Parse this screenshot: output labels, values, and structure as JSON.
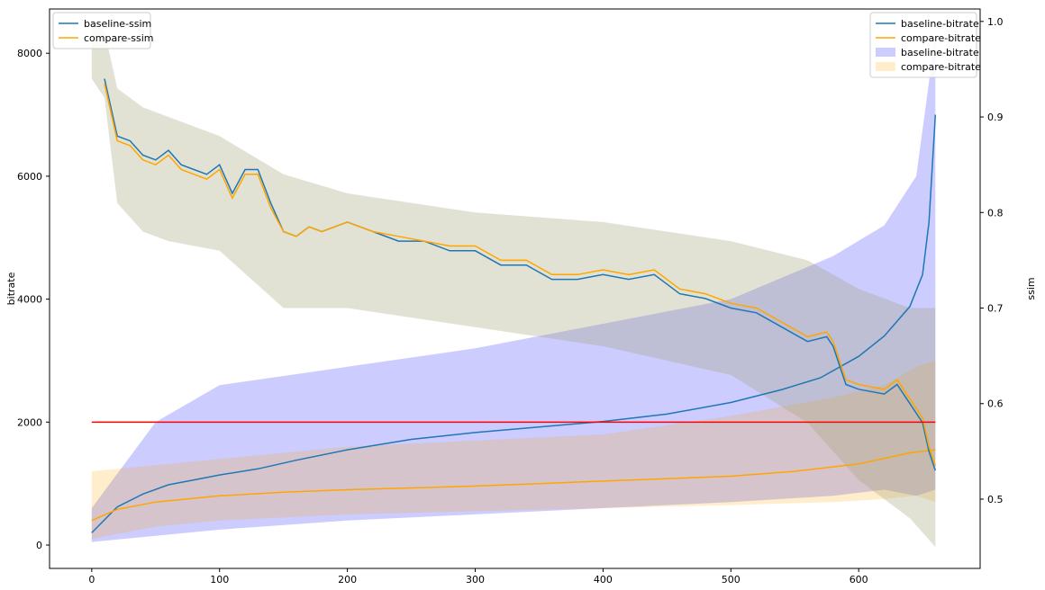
{
  "chart_data": {
    "type": "line",
    "title": "",
    "xlabel": "",
    "ylabel_left": "bitrate",
    "ylabel_right": "ssim",
    "xlim": [
      -33,
      695
    ],
    "ylim_left": [
      -380,
      8720
    ],
    "ylim_right": [
      0.4275,
      1.013
    ],
    "x_ticks": [
      0,
      100,
      200,
      300,
      400,
      500,
      600
    ],
    "y_ticks_left": [
      0,
      2000,
      4000,
      6000,
      8000
    ],
    "y_ticks_right": [
      0.5,
      0.6,
      0.7,
      0.8,
      0.9,
      1.0
    ],
    "threshold": {
      "y": 2000,
      "x_start": 0,
      "x_end": 660,
      "color": "#ff0000"
    },
    "bitrate_series": [
      {
        "name": "baseline-bitrate",
        "color": "#1f77b4",
        "x": [
          0,
          20,
          40,
          60,
          80,
          100,
          130,
          160,
          200,
          250,
          300,
          350,
          400,
          450,
          500,
          540,
          570,
          600,
          620,
          640,
          650,
          655,
          660
        ],
        "values": [
          200,
          620,
          830,
          980,
          1060,
          1140,
          1240,
          1380,
          1550,
          1720,
          1830,
          1920,
          2010,
          2130,
          2320,
          2530,
          2720,
          3070,
          3400,
          3880,
          4400,
          5250,
          7000
        ]
      },
      {
        "name": "compare-bitrate",
        "color": "#ffa500",
        "x": [
          0,
          20,
          50,
          100,
          150,
          200,
          250,
          300,
          350,
          400,
          450,
          500,
          550,
          600,
          640,
          660
        ],
        "values": [
          400,
          580,
          700,
          800,
          860,
          900,
          930,
          960,
          1000,
          1040,
          1080,
          1120,
          1200,
          1320,
          1500,
          1550
        ]
      }
    ],
    "bitrate_bands": [
      {
        "name": "baseline-bitrate",
        "color": "#0000ff",
        "opacity": 0.2,
        "x": [
          0,
          50,
          100,
          200,
          300,
          400,
          500,
          580,
          620,
          645,
          660
        ],
        "upper": [
          600,
          2000,
          2600,
          2900,
          3200,
          3600,
          4000,
          4700,
          5200,
          6000,
          8300
        ],
        "lower": [
          50,
          150,
          250,
          400,
          500,
          600,
          700,
          800,
          900,
          800,
          900
        ]
      },
      {
        "name": "compare-bitrate",
        "color": "#ffa500",
        "opacity": 0.2,
        "x": [
          0,
          50,
          100,
          200,
          300,
          400,
          500,
          580,
          620,
          645,
          660
        ],
        "upper": [
          1200,
          1300,
          1400,
          1600,
          1700,
          1800,
          2100,
          2400,
          2600,
          2900,
          3000
        ],
        "lower": [
          100,
          300,
          400,
          500,
          550,
          600,
          650,
          700,
          750,
          800,
          700
        ]
      }
    ],
    "ssim_series": [
      {
        "name": "baseline-ssim",
        "color": "#1f77b4",
        "x": [
          10,
          15,
          20,
          30,
          40,
          50,
          60,
          70,
          80,
          90,
          100,
          110,
          120,
          130,
          140,
          150,
          160,
          170,
          180,
          190,
          200,
          220,
          240,
          260,
          280,
          300,
          320,
          340,
          360,
          380,
          400,
          420,
          440,
          460,
          480,
          500,
          520,
          540,
          560,
          575,
          580,
          590,
          600,
          620,
          630,
          640,
          650,
          655,
          660
        ],
        "values": [
          0.94,
          0.91,
          0.88,
          0.875,
          0.86,
          0.855,
          0.865,
          0.85,
          0.845,
          0.84,
          0.85,
          0.82,
          0.845,
          0.845,
          0.81,
          0.78,
          0.775,
          0.785,
          0.78,
          0.785,
          0.79,
          0.78,
          0.77,
          0.77,
          0.76,
          0.76,
          0.745,
          0.745,
          0.73,
          0.73,
          0.735,
          0.73,
          0.735,
          0.715,
          0.71,
          0.7,
          0.695,
          0.68,
          0.665,
          0.67,
          0.66,
          0.62,
          0.615,
          0.61,
          0.62,
          0.6,
          0.58,
          0.55,
          0.53
        ]
      },
      {
        "name": "compare-ssim",
        "color": "#ffa500",
        "x": [
          10,
          15,
          20,
          30,
          40,
          50,
          60,
          70,
          80,
          90,
          100,
          110,
          120,
          130,
          140,
          150,
          160,
          170,
          180,
          190,
          200,
          220,
          240,
          260,
          280,
          300,
          320,
          340,
          360,
          380,
          400,
          420,
          440,
          460,
          480,
          500,
          520,
          540,
          560,
          575,
          580,
          590,
          600,
          620,
          630,
          640,
          650,
          655,
          660
        ],
        "values": [
          0.935,
          0.905,
          0.875,
          0.87,
          0.855,
          0.85,
          0.86,
          0.845,
          0.84,
          0.835,
          0.845,
          0.815,
          0.84,
          0.84,
          0.805,
          0.78,
          0.775,
          0.785,
          0.78,
          0.785,
          0.79,
          0.78,
          0.775,
          0.77,
          0.765,
          0.765,
          0.75,
          0.75,
          0.735,
          0.735,
          0.74,
          0.735,
          0.74,
          0.72,
          0.715,
          0.705,
          0.7,
          0.685,
          0.67,
          0.675,
          0.665,
          0.625,
          0.62,
          0.615,
          0.625,
          0.605,
          0.585,
          0.555,
          0.535
        ]
      }
    ],
    "ssim_band": {
      "color": "#a0a070",
      "opacity": 0.3,
      "x": [
        0,
        10,
        20,
        40,
        60,
        100,
        150,
        200,
        300,
        400,
        500,
        560,
        600,
        640,
        660
      ],
      "upper": [
        1.0,
        0.99,
        0.93,
        0.91,
        0.9,
        0.88,
        0.84,
        0.82,
        0.8,
        0.79,
        0.77,
        0.75,
        0.72,
        0.7,
        0.7
      ],
      "lower": [
        0.94,
        0.92,
        0.81,
        0.78,
        0.77,
        0.76,
        0.7,
        0.7,
        0.68,
        0.66,
        0.63,
        0.58,
        0.52,
        0.48,
        0.45
      ]
    },
    "legend_left": {
      "placement": "top-left",
      "entries": [
        {
          "label": "baseline-ssim",
          "color": "#1f77b4",
          "kind": "line"
        },
        {
          "label": "compare-ssim",
          "color": "#ffa500",
          "kind": "line"
        }
      ]
    },
    "legend_right": {
      "placement": "top-right",
      "entries": [
        {
          "label": "baseline-bitrate",
          "color": "#1f77b4",
          "kind": "line"
        },
        {
          "label": "compare-bitrate",
          "color": "#ffa500",
          "kind": "line"
        },
        {
          "label": "baseline-bitrate",
          "color": "#0000ff",
          "kind": "band"
        },
        {
          "label": "compare-bitrate",
          "color": "#ffa500",
          "kind": "band"
        }
      ]
    }
  }
}
